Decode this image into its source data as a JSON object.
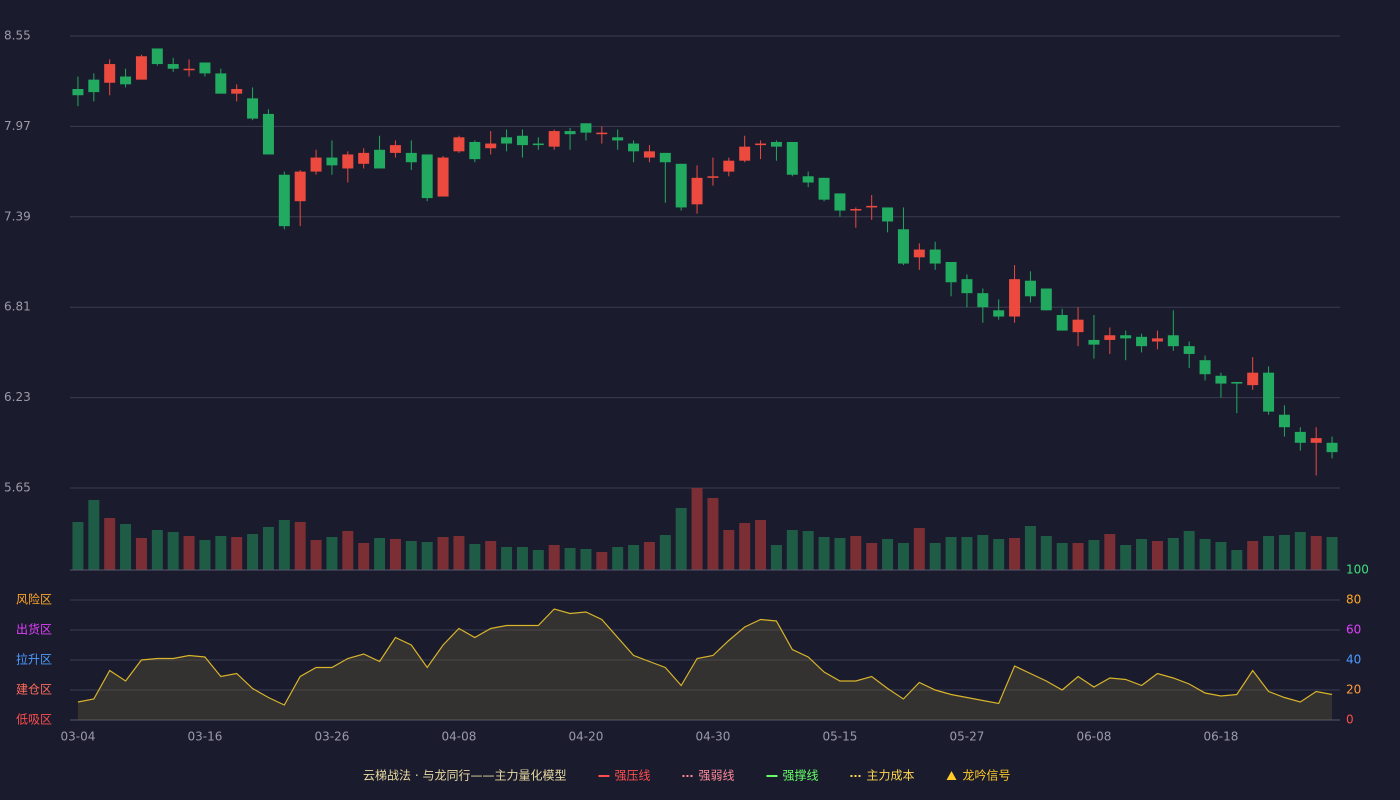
{
  "chart_data": [
    {
      "type": "candlestick",
      "categories": [
        "03-04",
        null,
        null,
        null,
        null,
        null,
        null,
        null,
        "03-16",
        null,
        null,
        null,
        null,
        null,
        null,
        null,
        "03-26",
        null,
        null,
        null,
        null,
        null,
        null,
        null,
        "04-08",
        null,
        null,
        null,
        null,
        null,
        null,
        null,
        "04-20",
        null,
        null,
        null,
        null,
        null,
        null,
        null,
        "04-30",
        null,
        null,
        null,
        null,
        null,
        null,
        null,
        "05-15",
        null,
        null,
        null,
        null,
        null,
        null,
        null,
        "05-27",
        null,
        null,
        null,
        null,
        null,
        null,
        null,
        "06-08",
        null,
        null,
        null,
        null,
        null,
        null,
        null,
        "06-18",
        null,
        null,
        null,
        null,
        null,
        null,
        null
      ],
      "open": [
        8.21,
        8.27,
        8.25,
        8.29,
        8.27,
        8.47,
        8.37,
        8.33,
        8.38,
        8.31,
        8.18,
        8.15,
        8.05,
        7.66,
        7.49,
        7.68,
        7.77,
        7.7,
        7.73,
        7.82,
        7.8,
        7.8,
        7.79,
        7.52,
        7.81,
        7.87,
        7.83,
        7.9,
        7.91,
        7.86,
        7.84,
        7.94,
        7.99,
        7.92,
        7.9,
        7.86,
        7.77,
        7.8,
        7.73,
        7.47,
        7.64,
        7.68,
        7.75,
        7.85,
        7.87,
        7.87,
        7.65,
        7.64,
        7.54,
        7.43,
        7.45,
        7.45,
        7.31,
        7.13,
        7.18,
        7.1,
        6.99,
        6.9,
        6.79,
        6.75,
        6.98,
        6.93,
        6.76,
        6.65,
        6.6,
        6.6,
        6.63,
        6.62,
        6.59,
        6.63,
        6.56,
        6.47,
        6.37,
        6.33,
        6.31,
        6.39,
        6.12,
        6.01,
        5.94,
        5.94
      ],
      "close": [
        8.17,
        8.19,
        8.37,
        8.24,
        8.42,
        8.37,
        8.34,
        8.34,
        8.31,
        8.18,
        8.21,
        8.02,
        7.79,
        7.33,
        7.68,
        7.77,
        7.72,
        7.79,
        7.8,
        7.7,
        7.85,
        7.74,
        7.51,
        7.77,
        7.9,
        7.76,
        7.86,
        7.86,
        7.85,
        7.85,
        7.94,
        7.92,
        7.93,
        7.93,
        7.88,
        7.81,
        7.81,
        7.74,
        7.45,
        7.64,
        7.65,
        7.75,
        7.84,
        7.86,
        7.84,
        7.66,
        7.61,
        7.5,
        7.43,
        7.44,
        7.46,
        7.36,
        7.09,
        7.18,
        7.09,
        6.97,
        6.9,
        6.81,
        6.75,
        6.99,
        6.88,
        6.79,
        6.66,
        6.73,
        6.57,
        6.63,
        6.61,
        6.56,
        6.61,
        6.56,
        6.51,
        6.38,
        6.32,
        6.32,
        6.39,
        6.14,
        6.04,
        5.94,
        5.97,
        5.88
      ],
      "high": [
        8.29,
        8.31,
        8.4,
        8.34,
        8.43,
        8.47,
        8.41,
        8.4,
        8.38,
        8.34,
        8.24,
        8.22,
        8.08,
        7.68,
        7.69,
        7.82,
        7.88,
        7.81,
        7.83,
        7.91,
        7.88,
        7.88,
        7.79,
        7.78,
        7.91,
        7.88,
        7.94,
        7.95,
        7.95,
        7.9,
        7.95,
        7.96,
        7.99,
        7.97,
        7.95,
        7.88,
        7.85,
        7.8,
        7.73,
        7.72,
        7.77,
        7.77,
        7.91,
        7.88,
        7.88,
        7.87,
        7.68,
        7.64,
        7.54,
        7.45,
        7.53,
        7.45,
        7.45,
        7.22,
        7.23,
        7.1,
        7.02,
        6.93,
        6.86,
        7.08,
        7.04,
        6.93,
        6.8,
        6.81,
        6.76,
        6.68,
        6.66,
        6.64,
        6.66,
        6.79,
        6.59,
        6.5,
        6.39,
        6.33,
        6.49,
        6.43,
        6.18,
        6.04,
        6.04,
        5.98
      ],
      "low": [
        8.1,
        8.13,
        8.17,
        8.22,
        8.27,
        8.36,
        8.32,
        8.29,
        8.29,
        8.18,
        8.13,
        8.01,
        7.79,
        7.31,
        7.33,
        7.66,
        7.66,
        7.61,
        7.7,
        7.7,
        7.77,
        7.69,
        7.49,
        7.52,
        7.8,
        7.74,
        7.79,
        7.81,
        7.77,
        7.82,
        7.82,
        7.82,
        7.88,
        7.86,
        7.82,
        7.74,
        7.74,
        7.48,
        7.43,
        7.41,
        7.59,
        7.65,
        7.74,
        7.76,
        7.75,
        7.65,
        7.58,
        7.49,
        7.39,
        7.32,
        7.37,
        7.29,
        7.08,
        7.05,
        7.05,
        6.88,
        6.81,
        6.71,
        6.73,
        6.71,
        6.84,
        6.79,
        6.66,
        6.56,
        6.48,
        6.51,
        6.47,
        6.52,
        6.54,
        6.53,
        6.42,
        6.34,
        6.23,
        6.13,
        6.28,
        6.12,
        5.98,
        5.89,
        5.73,
        5.84
      ],
      "volume": [
        48,
        70,
        52,
        46,
        32,
        40,
        38,
        34,
        30,
        34,
        33,
        36,
        43,
        50,
        48,
        30,
        33,
        39,
        27,
        32,
        31,
        29,
        28,
        33,
        34,
        26,
        29,
        23,
        23,
        20,
        25,
        22,
        21,
        18,
        23,
        25,
        28,
        35,
        62,
        82,
        72,
        40,
        47,
        50,
        25,
        40,
        39,
        33,
        32,
        34,
        27,
        31,
        27,
        42,
        27,
        33,
        33,
        35,
        31,
        32,
        44,
        34,
        27,
        27,
        30,
        36,
        25,
        31,
        29,
        32,
        39,
        31,
        28,
        20,
        29,
        34,
        35,
        38,
        34,
        33
      ],
      "up_color": "#ec4a3f",
      "down_color": "#22aa60",
      "volume_up_color": "#7b2f35",
      "volume_down_color": "#1f5c45",
      "ylim": [
        5.65,
        8.55
      ],
      "yticks": [
        5.65,
        6.23,
        6.81,
        7.39,
        7.97,
        8.55
      ],
      "grid": true
    },
    {
      "type": "area",
      "values": [
        12,
        14,
        33,
        26,
        40,
        41,
        41,
        43,
        42,
        29,
        31,
        21,
        15,
        10,
        29,
        35,
        35,
        41,
        44,
        39,
        55,
        50,
        35,
        50,
        61,
        55,
        61,
        63,
        63,
        63,
        74,
        71,
        72,
        67,
        55,
        43,
        39,
        35,
        23,
        41,
        43,
        53,
        62,
        67,
        66,
        47,
        42,
        32,
        26,
        26,
        29,
        21,
        14,
        25,
        20,
        17,
        15,
        13,
        11,
        36,
        31,
        26,
        20,
        29,
        22,
        28,
        27,
        23,
        31,
        28,
        24,
        18,
        16,
        17,
        33,
        19,
        15,
        12,
        19,
        17
      ],
      "color": "#d8b42a",
      "fill": "rgba(110,95,60,0.32)",
      "ylim": [
        0,
        100
      ],
      "yticks": [
        0,
        20,
        40,
        60,
        80,
        100
      ],
      "ytick_colors": [
        "#ff4d4d",
        "#ff9a3c",
        "#4d9cff",
        "#e040fb",
        "#ffa726",
        "#3ee07a"
      ],
      "zones": [
        {
          "label": "风险区",
          "value": 80,
          "color": "#ffa726"
        },
        {
          "label": "出货区",
          "value": 60,
          "color": "#e040fb"
        },
        {
          "label": "拉升区",
          "value": 40,
          "color": "#4d9cff"
        },
        {
          "label": "建仓区",
          "value": 20,
          "color": "#ff6b5b"
        },
        {
          "label": "低吸区",
          "value": 0,
          "color": "#ff4d4d"
        }
      ]
    }
  ],
  "legend": {
    "title": "云梯战法 · 与龙同行——主力量化模型",
    "items": [
      {
        "name": "强压线",
        "color": "#ff4d4d",
        "symbol": "line"
      },
      {
        "name": "强弱线",
        "color": "#ff8a9a",
        "symbol": "dash"
      },
      {
        "name": "强撑线",
        "color": "#66ff66",
        "symbol": "line"
      },
      {
        "name": "主力成本",
        "color": "#ffd54f",
        "symbol": "dash"
      },
      {
        "name": "龙吟信号",
        "color": "#ffca28",
        "symbol": "triangle"
      }
    ]
  }
}
